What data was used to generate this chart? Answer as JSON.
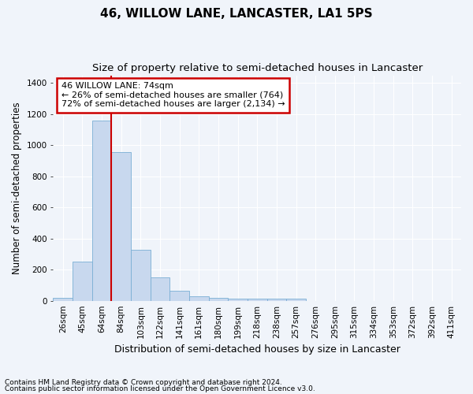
{
  "title": "46, WILLOW LANE, LANCASTER, LA1 5PS",
  "subtitle": "Size of property relative to semi-detached houses in Lancaster",
  "xlabel": "Distribution of semi-detached houses by size in Lancaster",
  "ylabel": "Number of semi-detached properties",
  "bar_color": "#c8d8ee",
  "bar_edge_color": "#7aafd4",
  "categories": [
    "26sqm",
    "45sqm",
    "64sqm",
    "84sqm",
    "103sqm",
    "122sqm",
    "141sqm",
    "161sqm",
    "180sqm",
    "199sqm",
    "218sqm",
    "238sqm",
    "257sqm",
    "276sqm",
    "295sqm",
    "315sqm",
    "334sqm",
    "353sqm",
    "372sqm",
    "392sqm",
    "411sqm"
  ],
  "values": [
    18,
    254,
    1158,
    955,
    328,
    148,
    63,
    28,
    20,
    15,
    15,
    15,
    15,
    0,
    0,
    0,
    0,
    0,
    0,
    0,
    0
  ],
  "annotation_text": "46 WILLOW LANE: 74sqm\n← 26% of semi-detached houses are smaller (764)\n72% of semi-detached houses are larger (2,134) →",
  "annotation_box_color": "#ffffff",
  "annotation_border_color": "#cc0000",
  "vline_color": "#cc0000",
  "vline_x": 2.5,
  "ylim": [
    0,
    1450
  ],
  "yticks": [
    0,
    200,
    400,
    600,
    800,
    1000,
    1200,
    1400
  ],
  "footnote1": "Contains HM Land Registry data © Crown copyright and database right 2024.",
  "footnote2": "Contains public sector information licensed under the Open Government Licence v3.0.",
  "background_color": "#f0f4fa",
  "plot_background": "#f0f4fa",
  "grid_color": "#ffffff",
  "title_fontsize": 11,
  "subtitle_fontsize": 9.5,
  "xlabel_fontsize": 9,
  "ylabel_fontsize": 8.5,
  "tick_fontsize": 7.5,
  "ann_fontsize": 8
}
